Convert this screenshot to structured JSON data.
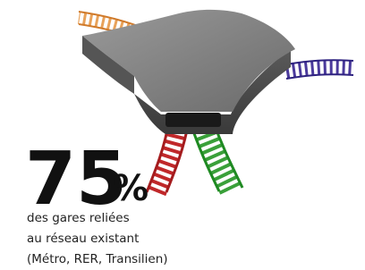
{
  "stat": {
    "value": 75,
    "unit": "%"
  },
  "caption": [
    "des gares reliées",
    "au réseau existant",
    "(Métro, RER, Transilien)"
  ]
}
